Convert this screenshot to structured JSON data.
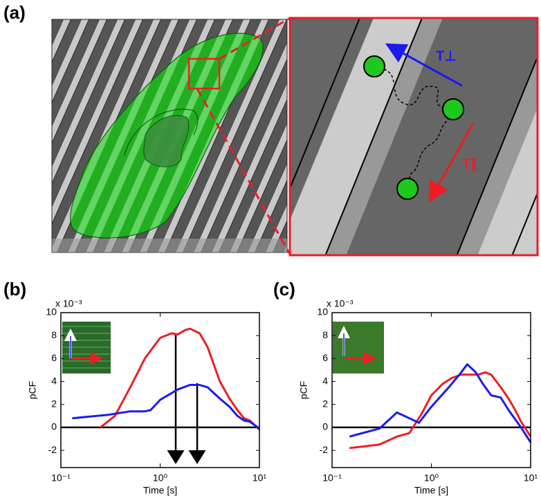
{
  "panels": [
    "(a)",
    "(b)",
    "(c)"
  ],
  "diagram": {
    "perpendicular_label": "T⊥",
    "parallel_label": "T∥"
  },
  "chart_data": [
    {
      "type": "line",
      "xlabel": "Time [s]",
      "ylabel": "pCF",
      "multiplier": "x 10⁻³",
      "xscale": "log",
      "xlim": [
        0.1,
        10
      ],
      "xticks": [
        {
          "value": 0.1,
          "label": "10⁻¹"
        },
        {
          "value": 1,
          "label": "10⁰"
        },
        {
          "value": 10,
          "label": "10¹"
        }
      ],
      "ylim": [
        -3.5,
        10
      ],
      "yticks": [
        -2,
        0,
        2,
        4,
        6,
        8,
        10
      ],
      "series": [
        {
          "name": "parallel",
          "color": "#ee1c25",
          "x": [
            0.25,
            0.35,
            0.5,
            0.7,
            1.0,
            1.3,
            1.5,
            1.8,
            2.0,
            2.5,
            3,
            4,
            5,
            6,
            7,
            8,
            10
          ],
          "values": [
            0,
            1,
            3.5,
            6,
            7.8,
            8.2,
            8.1,
            8.5,
            8.6,
            8.2,
            7,
            4,
            2.5,
            1.5,
            0.8,
            0.6,
            -0.2
          ]
        },
        {
          "name": "perpendicular",
          "color": "#1a1aee",
          "x": [
            0.13,
            0.3,
            0.5,
            0.7,
            0.8,
            1,
            1.5,
            2,
            2.5,
            3,
            4,
            5,
            6,
            7,
            8,
            10
          ],
          "values": [
            0.8,
            1.1,
            1.4,
            1.4,
            1.5,
            2.4,
            3.3,
            3.7,
            3.7,
            3.5,
            2.5,
            1.8,
            1,
            0.6,
            0.5,
            -0.1
          ]
        }
      ]
    },
    {
      "type": "line",
      "xlabel": "Time [s]",
      "ylabel": "pCF",
      "multiplier": "x 10⁻³",
      "xscale": "log",
      "xlim": [
        0.1,
        10
      ],
      "xticks": [
        {
          "value": 0.1,
          "label": "10⁻¹"
        },
        {
          "value": 1,
          "label": "10⁰"
        },
        {
          "value": 10,
          "label": "10¹"
        }
      ],
      "ylim": [
        -3.5,
        10
      ],
      "yticks": [
        -2,
        0,
        2,
        4,
        6,
        8,
        10
      ],
      "series": [
        {
          "name": "parallel",
          "color": "#ee1c25",
          "x": [
            0.15,
            0.3,
            0.45,
            0.6,
            0.8,
            1,
            1.3,
            1.6,
            2,
            2.5,
            3,
            3.5,
            4,
            5,
            6,
            7,
            8,
            10
          ],
          "values": [
            -1.8,
            -1.5,
            -0.8,
            -0.5,
            1.2,
            2.8,
            3.8,
            4.3,
            4.6,
            4.6,
            4.6,
            4.8,
            4.6,
            3.5,
            2.5,
            1.5,
            0.5,
            -0.8
          ]
        },
        {
          "name": "perpendicular",
          "color": "#1a1aee",
          "x": [
            0.15,
            0.3,
            0.45,
            0.6,
            0.75,
            1,
            1.5,
            2,
            2.3,
            2.8,
            3.3,
            4,
            5,
            6,
            8,
            10
          ],
          "values": [
            -0.8,
            -0.1,
            1.3,
            0.8,
            0.4,
            1.8,
            3.5,
            4.8,
            5.5,
            4.8,
            3.8,
            2.8,
            2.6,
            1.5,
            0,
            -1.3
          ]
        }
      ]
    }
  ]
}
